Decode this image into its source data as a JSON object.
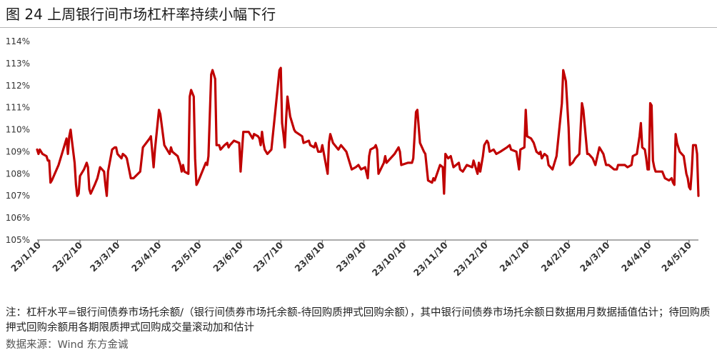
{
  "title": "图 24  上周银行间市场杠杆率持续小幅下行",
  "note": "注：杠杆水平=银行间债券市场托余额/（银行间债券市场托余额-待回购质押式回购余额），其中银行间债券市场托余额日数据用月数据插值估计；待回购质押式回购余额用各期限质押式回购成交量滚动加和估计",
  "source": "数据来源：Wind 东方金诚",
  "chart_data": {
    "type": "line",
    "title": "",
    "xlabel": "",
    "ylabel": "",
    "ylim": [
      105,
      114
    ],
    "yticks": [
      "105%",
      "106%",
      "107%",
      "108%",
      "109%",
      "110%",
      "111%",
      "112%",
      "113%",
      "114%"
    ],
    "xticks": [
      "23/1/10",
      "23/2/10",
      "23/3/10",
      "23/4/10",
      "23/5/10",
      "23/6/10",
      "23/7/10",
      "23/8/10",
      "23/9/10",
      "23/10/10",
      "23/11/10",
      "23/12/10",
      "24/1/10",
      "24/2/10",
      "24/3/10",
      "24/4/10",
      "24/5/10"
    ],
    "x_domain": [
      "2023-01-09",
      "2024-05-17"
    ],
    "grid": false,
    "legend": "none",
    "color": "#c00000",
    "series": [
      {
        "points": [
          [
            "2023-01-09",
            109.1
          ],
          [
            "2023-01-10",
            108.9
          ],
          [
            "2023-01-11",
            109.1
          ],
          [
            "2023-01-13",
            108.9
          ],
          [
            "2023-01-16",
            108.8
          ],
          [
            "2023-01-17",
            108.6
          ],
          [
            "2023-01-18",
            108.6
          ],
          [
            "2023-01-19",
            107.6
          ],
          [
            "2023-01-20",
            107.7
          ],
          [
            "2023-01-25",
            108.4
          ],
          [
            "2023-01-28",
            109.0
          ],
          [
            "2023-01-31",
            109.6
          ],
          [
            "2023-02-01",
            108.9
          ],
          [
            "2023-02-02",
            109.7
          ],
          [
            "2023-02-03",
            110.0
          ],
          [
            "2023-02-04",
            109.5
          ],
          [
            "2023-02-06",
            108.5
          ],
          [
            "2023-02-07",
            107.5
          ],
          [
            "2023-02-08",
            107.0
          ],
          [
            "2023-02-09",
            107.1
          ],
          [
            "2023-02-10",
            107.9
          ],
          [
            "2023-02-13",
            108.2
          ],
          [
            "2023-02-15",
            108.5
          ],
          [
            "2023-02-16",
            108.3
          ],
          [
            "2023-02-17",
            107.3
          ],
          [
            "2023-02-18",
            107.1
          ],
          [
            "2023-02-21",
            107.5
          ],
          [
            "2023-02-23",
            107.8
          ],
          [
            "2023-02-25",
            108.3
          ],
          [
            "2023-02-28",
            108.1
          ],
          [
            "2023-03-01",
            107.5
          ],
          [
            "2023-03-02",
            107.0
          ],
          [
            "2023-03-03",
            108.1
          ],
          [
            "2023-03-06",
            109.1
          ],
          [
            "2023-03-08",
            109.2
          ],
          [
            "2023-03-09",
            109.2
          ],
          [
            "2023-03-10",
            108.9
          ],
          [
            "2023-03-13",
            108.7
          ],
          [
            "2023-03-14",
            108.9
          ],
          [
            "2023-03-16",
            108.8
          ],
          [
            "2023-03-17",
            108.7
          ],
          [
            "2023-03-20",
            107.8
          ],
          [
            "2023-03-22",
            107.8
          ],
          [
            "2023-03-27",
            108.1
          ],
          [
            "2023-03-29",
            109.2
          ],
          [
            "2023-04-03",
            109.6
          ],
          [
            "2023-04-04",
            109.7
          ],
          [
            "2023-04-05",
            109.0
          ],
          [
            "2023-04-06",
            108.3
          ],
          [
            "2023-04-07",
            109.1
          ],
          [
            "2023-04-10",
            110.9
          ],
          [
            "2023-04-11",
            110.7
          ],
          [
            "2023-04-14",
            109.3
          ],
          [
            "2023-04-17",
            109.0
          ],
          [
            "2023-04-18",
            108.9
          ],
          [
            "2023-04-19",
            109.2
          ],
          [
            "2023-04-20",
            109.0
          ],
          [
            "2023-04-24",
            108.8
          ],
          [
            "2023-04-26",
            108.4
          ],
          [
            "2023-04-27",
            108.1
          ],
          [
            "2023-04-28",
            108.4
          ],
          [
            "2023-04-29",
            108.1
          ],
          [
            "2023-05-02",
            108.0
          ],
          [
            "2023-05-03",
            111.5
          ],
          [
            "2023-05-04",
            111.8
          ],
          [
            "2023-05-06",
            111.5
          ],
          [
            "2023-05-07",
            108.7
          ],
          [
            "2023-05-08",
            107.5
          ],
          [
            "2023-05-09",
            107.6
          ],
          [
            "2023-05-15",
            108.5
          ],
          [
            "2023-05-16",
            108.4
          ],
          [
            "2023-05-17",
            108.8
          ],
          [
            "2023-05-19",
            112.5
          ],
          [
            "2023-05-20",
            112.7
          ],
          [
            "2023-05-22",
            112.3
          ],
          [
            "2023-05-23",
            109.3
          ],
          [
            "2023-05-25",
            109.3
          ],
          [
            "2023-05-26",
            109.1
          ],
          [
            "2023-05-29",
            109.3
          ],
          [
            "2023-05-31",
            109.4
          ],
          [
            "2023-06-01",
            109.2
          ],
          [
            "2023-06-02",
            109.3
          ],
          [
            "2023-06-05",
            109.5
          ],
          [
            "2023-06-09",
            109.4
          ],
          [
            "2023-06-10",
            108.1
          ],
          [
            "2023-06-12",
            109.9
          ],
          [
            "2023-06-16",
            109.9
          ],
          [
            "2023-06-19",
            109.6
          ],
          [
            "2023-06-20",
            109.8
          ],
          [
            "2023-06-23",
            109.7
          ],
          [
            "2023-06-24",
            109.6
          ],
          [
            "2023-06-25",
            109.3
          ],
          [
            "2023-06-26",
            109.9
          ],
          [
            "2023-06-27",
            109.4
          ],
          [
            "2023-06-28",
            109.1
          ],
          [
            "2023-06-30",
            108.9
          ],
          [
            "2023-07-03",
            109.1
          ],
          [
            "2023-07-06",
            110.9
          ],
          [
            "2023-07-09",
            112.7
          ],
          [
            "2023-07-10",
            112.8
          ],
          [
            "2023-07-11",
            110.3
          ],
          [
            "2023-07-12",
            109.8
          ],
          [
            "2023-07-13",
            109.2
          ],
          [
            "2023-07-14",
            110.5
          ],
          [
            "2023-07-15",
            111.5
          ],
          [
            "2023-07-17",
            110.6
          ],
          [
            "2023-07-20",
            110.0
          ],
          [
            "2023-07-21",
            109.9
          ],
          [
            "2023-07-26",
            109.7
          ],
          [
            "2023-07-27",
            109.4
          ],
          [
            "2023-07-31",
            109.5
          ],
          [
            "2023-08-01",
            109.3
          ],
          [
            "2023-08-04",
            109.2
          ],
          [
            "2023-08-05",
            109.4
          ],
          [
            "2023-08-07",
            109.0
          ],
          [
            "2023-08-09",
            109.0
          ],
          [
            "2023-08-10",
            109.3
          ],
          [
            "2023-08-14",
            108.0
          ],
          [
            "2023-08-15",
            109.4
          ],
          [
            "2023-08-16",
            109.8
          ],
          [
            "2023-08-18",
            109.4
          ],
          [
            "2023-08-22",
            109.1
          ],
          [
            "2023-08-24",
            109.3
          ],
          [
            "2023-08-28",
            109.0
          ],
          [
            "2023-09-01",
            108.2
          ],
          [
            "2023-09-04",
            108.3
          ],
          [
            "2023-09-06",
            108.4
          ],
          [
            "2023-09-08",
            108.2
          ],
          [
            "2023-09-11",
            108.3
          ],
          [
            "2023-09-13",
            107.8
          ],
          [
            "2023-09-14",
            108.8
          ],
          [
            "2023-09-15",
            109.1
          ],
          [
            "2023-09-18",
            109.2
          ],
          [
            "2023-09-19",
            109.3
          ],
          [
            "2023-09-20",
            109.1
          ],
          [
            "2023-09-21",
            108.0
          ],
          [
            "2023-09-25",
            108.5
          ],
          [
            "2023-09-26",
            108.8
          ],
          [
            "2023-09-27",
            108.5
          ],
          [
            "2023-10-03",
            108.9
          ],
          [
            "2023-10-06",
            109.2
          ],
          [
            "2023-10-07",
            109.0
          ],
          [
            "2023-10-08",
            108.4
          ],
          [
            "2023-10-13",
            108.5
          ],
          [
            "2023-10-16",
            108.5
          ],
          [
            "2023-10-17",
            108.7
          ],
          [
            "2023-10-19",
            110.8
          ],
          [
            "2023-10-20",
            110.9
          ],
          [
            "2023-10-22",
            109.4
          ],
          [
            "2023-10-25",
            109.0
          ],
          [
            "2023-10-26",
            108.9
          ],
          [
            "2023-10-28",
            107.7
          ],
          [
            "2023-10-31",
            107.6
          ],
          [
            "2023-11-01",
            107.8
          ],
          [
            "2023-11-02",
            107.7
          ],
          [
            "2023-11-06",
            108.4
          ],
          [
            "2023-11-08",
            108.3
          ],
          [
            "2023-11-09",
            107.1
          ],
          [
            "2023-11-10",
            108.9
          ],
          [
            "2023-11-12",
            108.7
          ],
          [
            "2023-11-14",
            108.8
          ],
          [
            "2023-11-16",
            108.3
          ],
          [
            "2023-11-20",
            108.5
          ],
          [
            "2023-11-21",
            108.2
          ],
          [
            "2023-11-23",
            108.1
          ],
          [
            "2023-11-26",
            108.4
          ],
          [
            "2023-11-30",
            108.3
          ],
          [
            "2023-12-01",
            108.6
          ],
          [
            "2023-12-04",
            108.0
          ],
          [
            "2023-12-05",
            108.5
          ],
          [
            "2023-12-06",
            108.1
          ],
          [
            "2023-12-08",
            108.8
          ],
          [
            "2023-12-09",
            109.3
          ],
          [
            "2023-12-11",
            109.5
          ],
          [
            "2023-12-12",
            109.4
          ],
          [
            "2023-12-13",
            109.0
          ],
          [
            "2023-12-16",
            109.1
          ],
          [
            "2023-12-18",
            108.9
          ],
          [
            "2023-12-21",
            109.0
          ],
          [
            "2023-12-26",
            109.2
          ],
          [
            "2023-12-28",
            109.3
          ],
          [
            "2023-12-29",
            109.1
          ],
          [
            "2024-01-02",
            109.0
          ],
          [
            "2024-01-04",
            108.2
          ],
          [
            "2024-01-05",
            109.1
          ],
          [
            "2024-01-08",
            109.2
          ],
          [
            "2024-01-09",
            110.9
          ],
          [
            "2024-01-10",
            109.7
          ],
          [
            "2024-01-13",
            109.6
          ],
          [
            "2024-01-15",
            109.4
          ],
          [
            "2024-01-17",
            109.0
          ],
          [
            "2024-01-19",
            108.9
          ],
          [
            "2024-01-20",
            109.0
          ],
          [
            "2024-01-21",
            108.7
          ],
          [
            "2024-01-23",
            108.9
          ],
          [
            "2024-01-25",
            108.8
          ],
          [
            "2024-01-26",
            108.4
          ],
          [
            "2024-01-29",
            108.2
          ],
          [
            "2024-01-31",
            108.6
          ],
          [
            "2024-02-01",
            108.8
          ],
          [
            "2024-02-05",
            111.2
          ],
          [
            "2024-02-06",
            112.7
          ],
          [
            "2024-02-08",
            112.2
          ],
          [
            "2024-02-10",
            110.1
          ],
          [
            "2024-02-11",
            108.4
          ],
          [
            "2024-02-13",
            108.5
          ],
          [
            "2024-02-15",
            108.7
          ],
          [
            "2024-02-18",
            108.9
          ],
          [
            "2024-02-20",
            111.2
          ],
          [
            "2024-02-21",
            110.9
          ],
          [
            "2024-02-24",
            108.9
          ],
          [
            "2024-02-25",
            108.9
          ],
          [
            "2024-02-28",
            108.7
          ],
          [
            "2024-03-01",
            108.4
          ],
          [
            "2024-03-04",
            109.2
          ],
          [
            "2024-03-07",
            108.9
          ],
          [
            "2024-03-09",
            108.4
          ],
          [
            "2024-03-11",
            108.4
          ],
          [
            "2024-03-13",
            108.3
          ],
          [
            "2024-03-15",
            108.2
          ],
          [
            "2024-03-17",
            108.2
          ],
          [
            "2024-03-18",
            108.4
          ],
          [
            "2024-03-23",
            108.4
          ],
          [
            "2024-03-25",
            108.3
          ],
          [
            "2024-03-28",
            108.4
          ],
          [
            "2024-03-29",
            108.8
          ],
          [
            "2024-04-01",
            108.9
          ],
          [
            "2024-04-03",
            109.7
          ],
          [
            "2024-04-04",
            110.3
          ],
          [
            "2024-04-05",
            109.2
          ],
          [
            "2024-04-07",
            109.1
          ],
          [
            "2024-04-08",
            108.7
          ],
          [
            "2024-04-09",
            108.2
          ],
          [
            "2024-04-10",
            108.2
          ],
          [
            "2024-04-11",
            111.2
          ],
          [
            "2024-04-12",
            111.1
          ],
          [
            "2024-04-13",
            108.6
          ],
          [
            "2024-04-14",
            108.3
          ],
          [
            "2024-04-15",
            108.1
          ],
          [
            "2024-04-20",
            108.1
          ],
          [
            "2024-04-22",
            107.8
          ],
          [
            "2024-04-25",
            107.7
          ],
          [
            "2024-04-27",
            107.8
          ],
          [
            "2024-04-28",
            107.6
          ],
          [
            "2024-04-29",
            107.5
          ],
          [
            "2024-04-30",
            109.8
          ],
          [
            "2024-05-01",
            109.4
          ],
          [
            "2024-05-03",
            109.0
          ],
          [
            "2024-05-06",
            108.8
          ],
          [
            "2024-05-08",
            108.0
          ],
          [
            "2024-05-09",
            107.8
          ],
          [
            "2024-05-10",
            107.4
          ],
          [
            "2024-05-11",
            107.3
          ],
          [
            "2024-05-12",
            108.1
          ],
          [
            "2024-05-13",
            109.3
          ],
          [
            "2024-05-15",
            109.3
          ],
          [
            "2024-05-16",
            108.9
          ],
          [
            "2024-05-17",
            107.0
          ]
        ]
      }
    ]
  }
}
